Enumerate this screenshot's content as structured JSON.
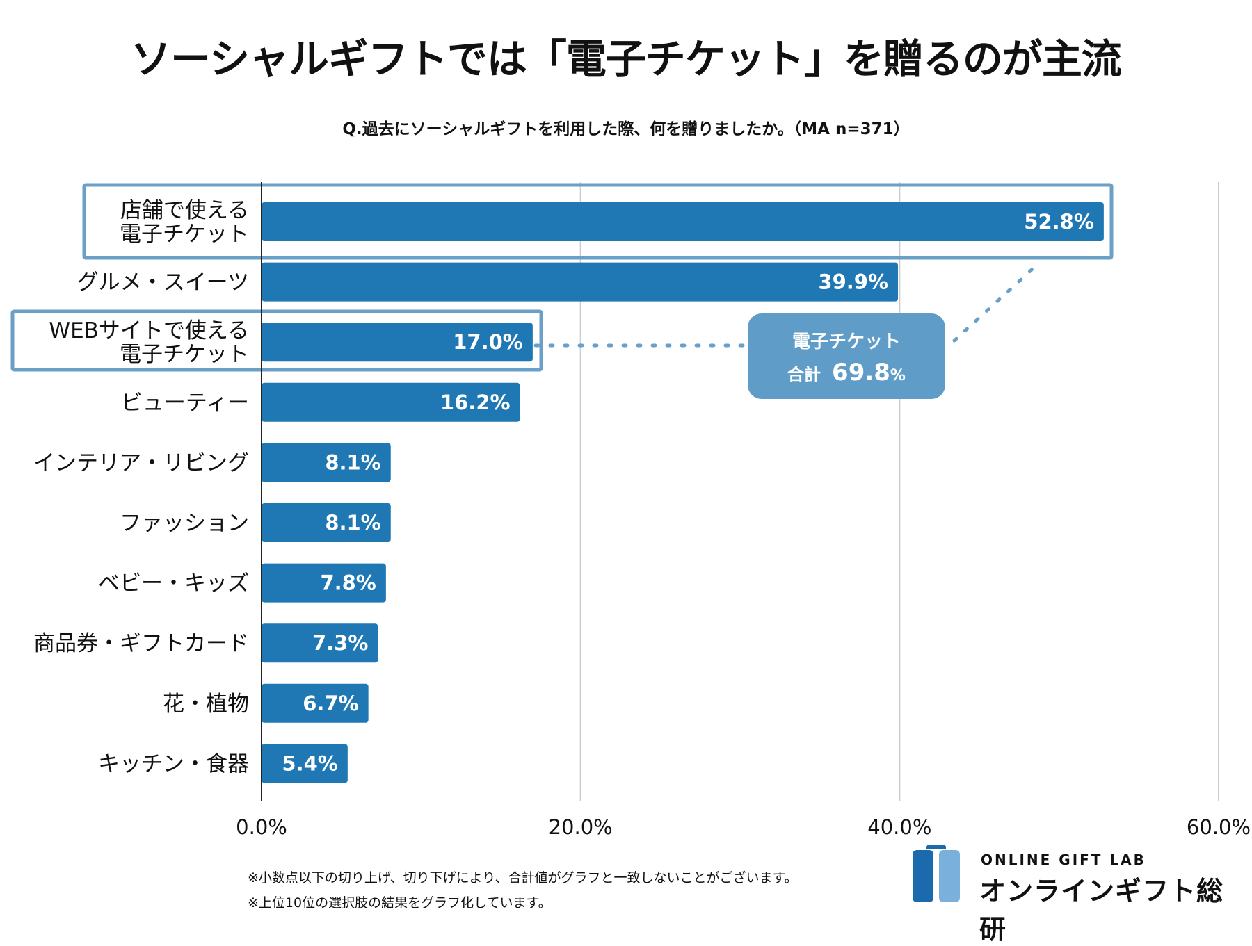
{
  "header": {
    "title": "ソーシャルギフトでは「電子チケット」を贈るのが主流",
    "question": "Q.過去にソーシャルギフトを利用した際、何を贈りましたか。（MA n=371）"
  },
  "chart_data": {
    "type": "bar",
    "orientation": "horizontal",
    "title": "ソーシャルギフトでは「電子チケット」を贈るのが主流",
    "subtitle": "Q.過去にソーシャルギフトを利用した際、何を贈りましたか。（MA n=371）",
    "categories": [
      [
        "店舗で使える",
        "電子チケット"
      ],
      [
        "グルメ・スイーツ"
      ],
      [
        "WEBサイトで使える",
        "電子チケット"
      ],
      [
        "ビューティー"
      ],
      [
        "インテリア・リビング"
      ],
      [
        "ファッション"
      ],
      [
        "ベビー・キッズ"
      ],
      [
        "商品券・ギフトカード"
      ],
      [
        "花・植物"
      ],
      [
        "キッチン・食器"
      ]
    ],
    "values": [
      52.8,
      39.9,
      17.0,
      16.2,
      8.1,
      8.1,
      7.8,
      7.3,
      6.7,
      5.4
    ],
    "value_labels": [
      "52.8%",
      "39.9%",
      "17.0%",
      "16.2%",
      "8.1%",
      "8.1%",
      "7.8%",
      "7.3%",
      "6.7%",
      "5.4%"
    ],
    "xlim": [
      0,
      60
    ],
    "xticks": [
      0,
      20,
      40,
      60
    ],
    "xtick_labels": [
      "0.0%",
      "20.0%",
      "40.0%",
      "60.0%"
    ],
    "xlabel": "",
    "ylabel": "",
    "grid": true,
    "highlighted_categories": [
      0,
      2
    ],
    "annotation": {
      "line1": "電子チケット",
      "label": "合計",
      "value": "69.8",
      "unit": "%"
    },
    "colors": {
      "bar": "#1f78b4",
      "highlight_box": "#6a9fc8",
      "callout": "#5f9dc8",
      "grid": "#cccccc"
    }
  },
  "footnotes": [
    "※小数点以下の切り上げ、切り下げにより、合計値がグラフと一致しないことがございます。",
    "※上位10位の選択肢の結果をグラフ化しています。"
  ],
  "logo": {
    "en": "ONLINE GIFT LAB",
    "jp": "オンラインギフト総研",
    "colors": {
      "dark": "#1a6aad",
      "light": "#7ab0dc"
    }
  }
}
